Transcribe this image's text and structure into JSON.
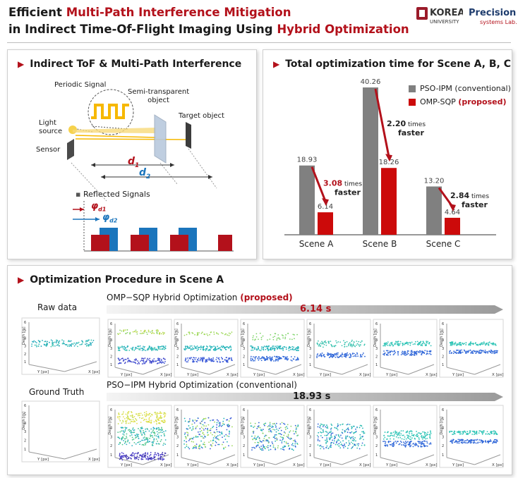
{
  "header": {
    "line1": {
      "pre": "Efficient ",
      "accent": "Multi-Path Interference Mitigation"
    },
    "line2": {
      "pre": "in Indirect Time-Of-Flight Imaging Using ",
      "accent": "Hybrid Optimization"
    },
    "logo_korea_line1": "KOREA",
    "logo_korea_line2": "UNIVERSITY",
    "logo_lab_line1": "Precision",
    "logo_lab_line2": "systems Lab."
  },
  "panel_tof": {
    "title": "Indirect ToF & Multi-Path Interference",
    "periodic_signal": "Periodic Signal",
    "semi_line1": "Semi-transparent",
    "semi_line2": "object",
    "target_object": "Target object",
    "light_line1": "Light",
    "light_line2": "source",
    "sensor": "Sensor",
    "d1": "d",
    "d1_sub": "1",
    "d2": "d",
    "d2_sub": "2",
    "reflected": "Reflected Signals",
    "phi": "φ",
    "phi_sub1": "d1",
    "phi_sub2": "d2",
    "colors": {
      "red": "#b3111b",
      "blue": "#1b75bc",
      "yellow": "#f6b800"
    }
  },
  "chart_data": {
    "type": "bar",
    "title": "Total optimization time for Scene A, B, C",
    "categories": [
      "Scene A",
      "Scene B",
      "Scene C"
    ],
    "series": [
      {
        "name": "PSO-IPM (conventional)",
        "values": [
          18.93,
          40.26,
          13.2
        ],
        "labels": [
          "18.93",
          "40.26",
          "13.20"
        ],
        "color": "#808080"
      },
      {
        "name": "OMP-SQP",
        "name_suffix": "(proposed)",
        "values": [
          6.14,
          18.26,
          4.64
        ],
        "labels": [
          "6.14",
          "18.26",
          "4.64"
        ],
        "color": "#cc0a0a"
      }
    ],
    "speedups": [
      {
        "value": "3.08",
        "word1": "times",
        "word2": "faster"
      },
      {
        "value": "2.20",
        "word1": "times",
        "word2": "faster"
      },
      {
        "value": "2.84",
        "word1": "times",
        "word2": "faster"
      }
    ],
    "ylim": [
      0,
      42
    ]
  },
  "panel_opt": {
    "title": "Optimization Procedure in Scene A",
    "raw_data": "Raw data",
    "ground_truth": "Ground Truth",
    "omp_title": "OMP−SQP Hybrid Optimization ",
    "omp_suffix": "(proposed)",
    "omp_time": "6.14 s",
    "pso_title": "PSO−IPM Hybrid Optimization (conventional)",
    "pso_time": "18.93 s",
    "axis_depth": "Depth [m]",
    "axis_y": "Y [px]",
    "axis_x": "X [px]",
    "ticks_z": [
      "1",
      "2",
      "3",
      "4",
      "5",
      "6"
    ],
    "tick_1": "1",
    "tick_20": "20",
    "tick_40": "40",
    "tick_40b": "40",
    "tick_20b": "20",
    "tick_1b": "1"
  }
}
